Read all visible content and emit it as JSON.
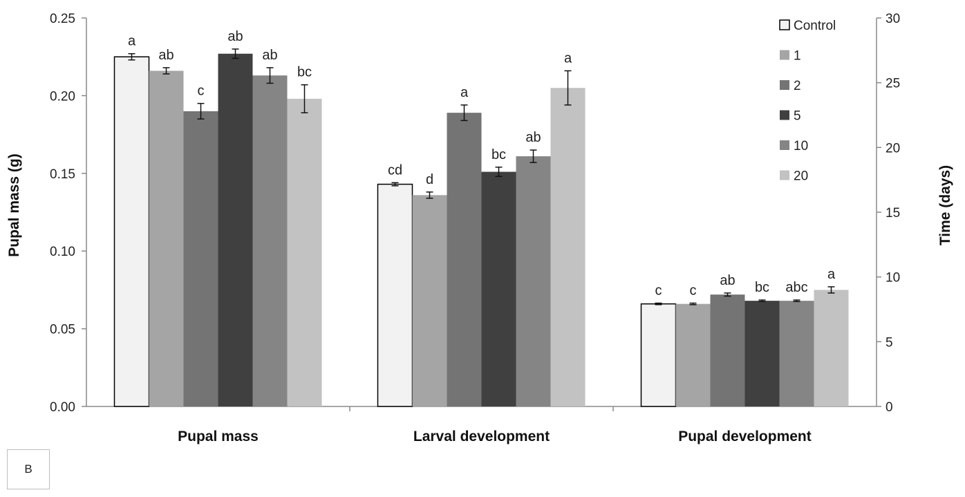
{
  "chart_data": {
    "type": "bar",
    "categories": [
      "Pupal mass",
      "Larval development",
      "Pupal development"
    ],
    "series": [
      {
        "name": "Control",
        "color": "#f2f2f2",
        "values": [
          0.225,
          0.143,
          0.066
        ],
        "errors": [
          0.002,
          0.001,
          0.0005
        ],
        "significance": [
          "a",
          "cd",
          "c"
        ]
      },
      {
        "name": "1",
        "color": "#a5a5a5",
        "values": [
          0.216,
          0.136,
          0.066
        ],
        "errors": [
          0.002,
          0.002,
          0.0005
        ],
        "significance": [
          "ab",
          "d",
          "c"
        ]
      },
      {
        "name": "2",
        "color": "#747474",
        "values": [
          0.19,
          0.189,
          0.072
        ],
        "errors": [
          0.005,
          0.005,
          0.001
        ],
        "significance": [
          "c",
          "a",
          "ab"
        ]
      },
      {
        "name": "5",
        "color": "#404040",
        "values": [
          0.227,
          0.151,
          0.068
        ],
        "errors": [
          0.003,
          0.003,
          0.0005
        ],
        "significance": [
          "ab",
          "bc",
          "bc"
        ]
      },
      {
        "name": "10",
        "color": "#858585",
        "values": [
          0.213,
          0.161,
          0.068
        ],
        "errors": [
          0.005,
          0.004,
          0.0005
        ],
        "significance": [
          "ab",
          "ab",
          "abc"
        ]
      },
      {
        "name": "20",
        "color": "#c2c2c2",
        "values": [
          0.198,
          0.205,
          0.075
        ],
        "errors": [
          0.009,
          0.011,
          0.002
        ],
        "significance": [
          "bc",
          "a",
          "a"
        ]
      }
    ],
    "ylabel": "Pupal mass (g)",
    "y2label": "Time (days)",
    "ylim": [
      0,
      0.25
    ],
    "yticks": [
      "0.00",
      "0.05",
      "0.10",
      "0.15",
      "0.20",
      "0.25"
    ],
    "y2lim": [
      0,
      30
    ],
    "y2ticks": [
      "0",
      "5",
      "10",
      "15",
      "20",
      "25",
      "30"
    ],
    "grid": false,
    "legend_placement": "top-right",
    "panel_label": "B"
  }
}
